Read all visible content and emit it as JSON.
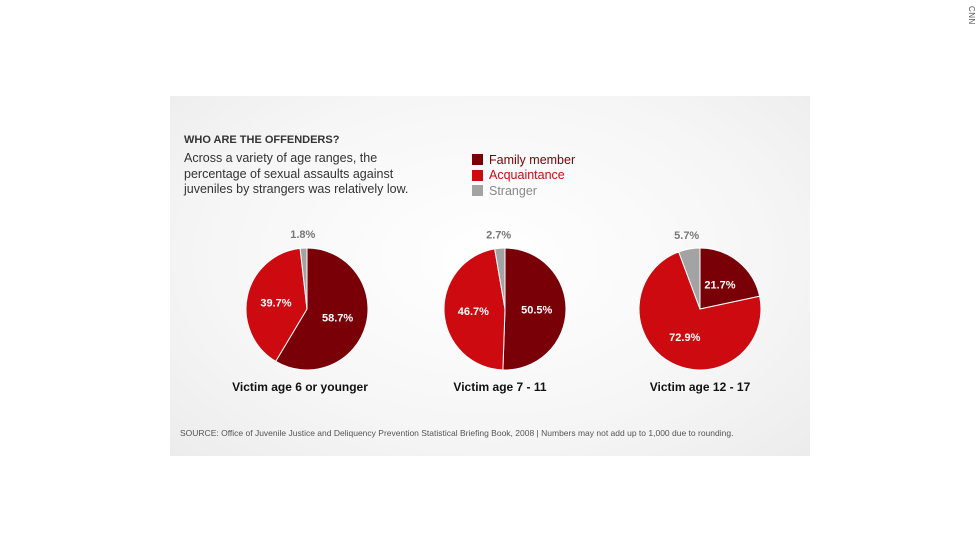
{
  "watermark": "CNN",
  "chart_data": {
    "type": "pie",
    "title": "WHO ARE THE OFFENDERS?",
    "subtitle": "Across a variety of age ranges, the percentage of sexual assaults against juveniles by strangers was relatively low.",
    "legend": [
      {
        "name": "Family member",
        "color": "#7a0008"
      },
      {
        "name": "Acquaintance",
        "color": "#cc0a10"
      },
      {
        "name": "Stranger",
        "color": "#a3a3a3"
      }
    ],
    "legend_position": "top-center",
    "pies": [
      {
        "caption": "Victim age 6 or younger",
        "values": [
          58.7,
          39.7,
          1.8
        ],
        "labels": [
          "58.7%",
          "39.7%",
          "1.8%"
        ]
      },
      {
        "caption": "Victim age 7 - 11",
        "values": [
          50.5,
          46.7,
          2.7
        ],
        "labels": [
          "50.5%",
          "46.7%",
          "2.7%"
        ]
      },
      {
        "caption": "Victim age 12 - 17",
        "values": [
          21.7,
          72.9,
          5.7
        ],
        "labels": [
          "21.7%",
          "72.9%",
          "5.7%"
        ]
      }
    ],
    "source": "SOURCE: Office of Juvenile Justice and Deliquency Prevention Statistical Briefing Book, 2008 | Numbers may not add up to 1,000 due to rounding."
  }
}
